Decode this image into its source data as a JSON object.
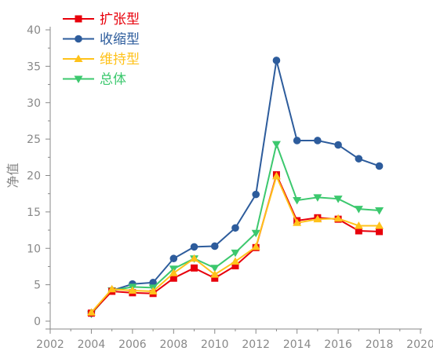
{
  "chart_data": {
    "type": "line",
    "title": "",
    "xlabel": "",
    "ylabel": "净值",
    "xlim": [
      2002,
      2020
    ],
    "ylim": [
      0,
      40
    ],
    "xticks": [
      2002,
      2004,
      2006,
      2008,
      2010,
      2012,
      2014,
      2016,
      2018,
      2020
    ],
    "yticks": [
      0,
      5,
      10,
      15,
      20,
      25,
      30,
      35,
      40
    ],
    "grid": false,
    "legend_position": "top-left",
    "x": [
      2004,
      2005,
      2006,
      2007,
      2008,
      2009,
      2010,
      2011,
      2012,
      2013,
      2014,
      2015,
      2016,
      2017,
      2018
    ],
    "series": [
      {
        "name": "扩张型",
        "color": "#e8000b",
        "marker": "square",
        "values": [
          1.1,
          4.1,
          3.9,
          3.8,
          5.9,
          7.3,
          5.9,
          7.6,
          10.1,
          20.1,
          13.8,
          14.2,
          14.0,
          12.4,
          12.3
        ]
      },
      {
        "name": "收缩型",
        "color": "#2d5c9c",
        "marker": "circle",
        "values": [
          1.1,
          4.2,
          5.1,
          5.3,
          8.6,
          10.2,
          10.3,
          12.8,
          17.4,
          35.8,
          24.8,
          24.8,
          24.2,
          22.3,
          21.3
        ]
      },
      {
        "name": "维持型",
        "color": "#ffc21a",
        "marker": "triangle-up",
        "values": [
          1.2,
          4.4,
          4.2,
          4.1,
          6.6,
          8.6,
          6.4,
          8.2,
          10.2,
          19.9,
          13.5,
          14.0,
          14.1,
          13.1,
          13.1
        ]
      },
      {
        "name": "总体",
        "color": "#3cc86e",
        "marker": "triangle-down",
        "values": [
          1.0,
          4.2,
          4.7,
          4.6,
          7.2,
          8.6,
          7.3,
          9.4,
          12.1,
          24.3,
          16.6,
          17.0,
          16.8,
          15.4,
          15.2
        ]
      }
    ]
  }
}
